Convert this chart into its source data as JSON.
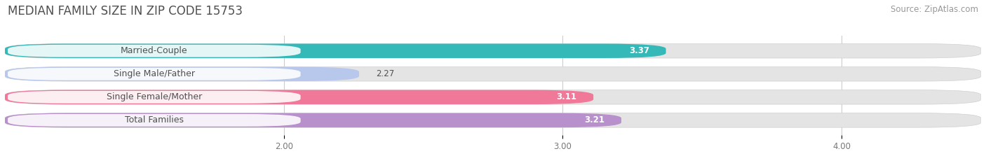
{
  "title": "MEDIAN FAMILY SIZE IN ZIP CODE 15753",
  "source": "Source: ZipAtlas.com",
  "categories": [
    "Married-Couple",
    "Single Male/Father",
    "Single Female/Mother",
    "Total Families"
  ],
  "values": [
    3.37,
    2.27,
    3.11,
    3.21
  ],
  "bar_colors": [
    "#35b8b8",
    "#b8c8ec",
    "#f07898",
    "#b890cc"
  ],
  "bar_bg_color": "#e4e4e4",
  "xlim": [
    1.0,
    4.5
  ],
  "xmin": 1.0,
  "xmax": 4.5,
  "xticks": [
    2.0,
    3.0,
    4.0
  ],
  "bg_color": "#ffffff",
  "title_color": "#505050",
  "source_color": "#999999",
  "title_fontsize": 12,
  "source_fontsize": 8.5,
  "bar_label_fontsize": 8.5,
  "cat_label_fontsize": 9,
  "value_inside_threshold": 2.8
}
